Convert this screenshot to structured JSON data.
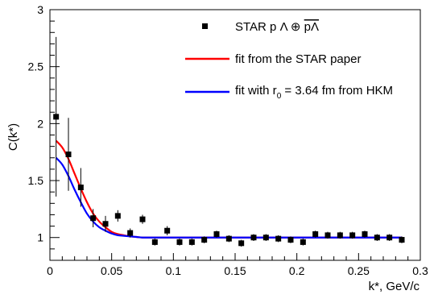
{
  "chart_data": {
    "type": "scatter",
    "xlabel": "k*, GeV/c",
    "ylabel": "C(k*)",
    "xlim": [
      0,
      0.3
    ],
    "ylim": [
      0.8,
      3.0
    ],
    "x_ticks": [
      0,
      0.05,
      0.1,
      0.15,
      0.2,
      0.25,
      0.3
    ],
    "x_tick_labels": [
      "0",
      "0.05",
      "0.1",
      "0.15",
      "0.2",
      "0.25",
      "0.3"
    ],
    "y_ticks": [
      1,
      1.5,
      2,
      2.5,
      3
    ],
    "y_tick_labels": [
      "1",
      "1.5",
      "2",
      "2.5",
      "3"
    ],
    "legend_position": "top-right",
    "series": [
      {
        "name": "STAR p Λ ⊕ p̄Λ̄",
        "legend_text": "STAR p Λ ⊕ ",
        "legend_overlined": "pΛ",
        "kind": "points",
        "color": "#000000",
        "points": [
          {
            "x": 0.005,
            "y": 2.06,
            "err": 0.7
          },
          {
            "x": 0.015,
            "y": 1.73,
            "err": 0.32
          },
          {
            "x": 0.025,
            "y": 1.44,
            "err": 0.17
          },
          {
            "x": 0.035,
            "y": 1.17,
            "err": 0.08
          },
          {
            "x": 0.045,
            "y": 1.12,
            "err": 0.07
          },
          {
            "x": 0.055,
            "y": 1.19,
            "err": 0.05
          },
          {
            "x": 0.065,
            "y": 1.04,
            "err": 0.04
          },
          {
            "x": 0.075,
            "y": 1.16,
            "err": 0.04
          },
          {
            "x": 0.085,
            "y": 0.96,
            "err": 0.03
          },
          {
            "x": 0.095,
            "y": 1.06,
            "err": 0.04
          },
          {
            "x": 0.105,
            "y": 0.96,
            "err": 0.03
          },
          {
            "x": 0.115,
            "y": 0.96,
            "err": 0.03
          },
          {
            "x": 0.125,
            "y": 0.98,
            "err": 0.03
          },
          {
            "x": 0.135,
            "y": 1.03,
            "err": 0.03
          },
          {
            "x": 0.145,
            "y": 0.99,
            "err": 0.03
          },
          {
            "x": 0.155,
            "y": 0.95,
            "err": 0.03
          },
          {
            "x": 0.165,
            "y": 1.0,
            "err": 0.03
          },
          {
            "x": 0.175,
            "y": 1.0,
            "err": 0.03
          },
          {
            "x": 0.185,
            "y": 0.99,
            "err": 0.03
          },
          {
            "x": 0.195,
            "y": 0.98,
            "err": 0.03
          },
          {
            "x": 0.205,
            "y": 0.96,
            "err": 0.03
          },
          {
            "x": 0.215,
            "y": 1.03,
            "err": 0.03
          },
          {
            "x": 0.225,
            "y": 1.02,
            "err": 0.03
          },
          {
            "x": 0.235,
            "y": 1.02,
            "err": 0.03
          },
          {
            "x": 0.245,
            "y": 1.02,
            "err": 0.03
          },
          {
            "x": 0.255,
            "y": 1.03,
            "err": 0.03
          },
          {
            "x": 0.265,
            "y": 1.0,
            "err": 0.03
          },
          {
            "x": 0.275,
            "y": 1.0,
            "err": 0.03
          },
          {
            "x": 0.285,
            "y": 0.98,
            "err": 0.03
          }
        ]
      },
      {
        "name": "fit from the STAR paper",
        "kind": "line",
        "color": "#ff0000",
        "x": [
          0.005,
          0.01,
          0.015,
          0.02,
          0.025,
          0.03,
          0.035,
          0.04,
          0.045,
          0.05,
          0.055,
          0.06,
          0.065,
          0.07,
          0.075,
          0.08,
          0.09,
          0.1,
          0.12,
          0.15,
          0.2,
          0.25,
          0.285
        ],
        "y": [
          1.85,
          1.79,
          1.69,
          1.56,
          1.43,
          1.31,
          1.21,
          1.14,
          1.09,
          1.05,
          1.03,
          1.02,
          1.01,
          1.005,
          1.0,
          1.0,
          1.0,
          1.0,
          1.0,
          1.0,
          1.0,
          1.0,
          1.0
        ]
      },
      {
        "name": "fit with r0 = 3.64 fm from HKM",
        "legend_parts": [
          "fit with r",
          "0",
          " = 3.64 fm from HKM"
        ],
        "kind": "line",
        "color": "#0000ff",
        "x": [
          0.005,
          0.01,
          0.015,
          0.02,
          0.025,
          0.03,
          0.035,
          0.04,
          0.045,
          0.05,
          0.055,
          0.06,
          0.065,
          0.07,
          0.075,
          0.08,
          0.09,
          0.1,
          0.12,
          0.15,
          0.2,
          0.25,
          0.285
        ],
        "y": [
          1.7,
          1.64,
          1.54,
          1.42,
          1.31,
          1.21,
          1.14,
          1.09,
          1.06,
          1.035,
          1.02,
          1.015,
          1.01,
          1.005,
          1.0,
          1.0,
          1.0,
          1.0,
          1.0,
          1.0,
          1.0,
          1.0,
          1.0
        ]
      }
    ]
  }
}
